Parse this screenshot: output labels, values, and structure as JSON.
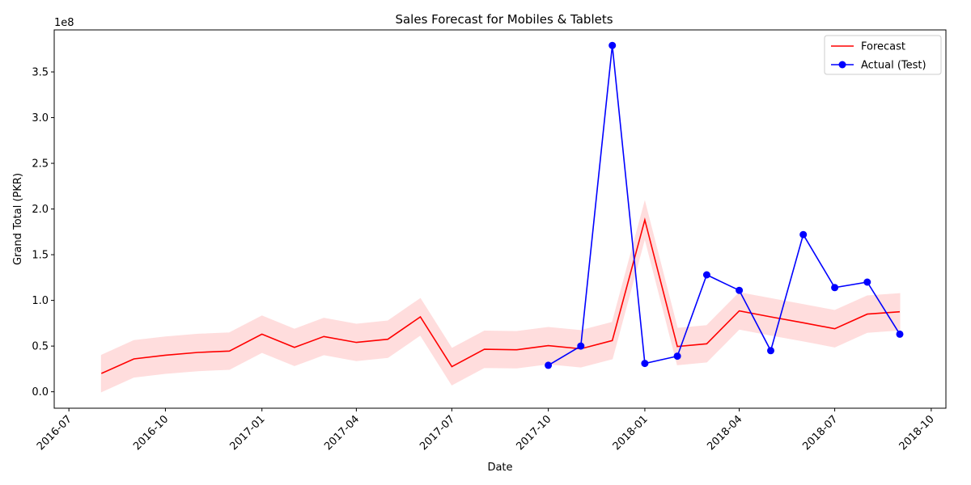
{
  "chart_data": {
    "type": "line",
    "title": "Sales Forecast for Mobiles & Tablets",
    "xlabel": "Date",
    "ylabel": "Grand Total (PKR)",
    "y_offset_label": "1e8",
    "xlim": [
      "2016-06-17",
      "2018-10-15"
    ],
    "ylim": [
      -0.18,
      3.96
    ],
    "x_ticks": [
      "2016-07",
      "2016-10",
      "2017-01",
      "2017-04",
      "2017-07",
      "2017-10",
      "2018-01",
      "2018-04",
      "2018-07",
      "2018-10"
    ],
    "y_ticks": [
      "0.0",
      "0.5",
      "1.0",
      "1.5",
      "2.0",
      "2.5",
      "3.0",
      "3.5"
    ],
    "grid": false,
    "legend_position": "top-right",
    "series": [
      {
        "name": "Forecast",
        "color": "#ff0000",
        "marker": "none",
        "band_color": "#ffdddd",
        "x": [
          "2016-08-01",
          "2016-09-01",
          "2016-10-01",
          "2016-11-01",
          "2016-12-01",
          "2017-01-01",
          "2017-02-01",
          "2017-03-01",
          "2017-04-01",
          "2017-05-01",
          "2017-06-01",
          "2017-07-01",
          "2017-08-01",
          "2017-09-01",
          "2017-10-01",
          "2017-11-01",
          "2017-12-01",
          "2018-01-01",
          "2018-02-01",
          "2018-03-01",
          "2018-04-01",
          "2018-05-01",
          "2018-06-01",
          "2018-07-01",
          "2018-08-01",
          "2018-09-01"
        ],
        "values": [
          0.2,
          0.36,
          0.4,
          0.43,
          0.445,
          0.63,
          0.485,
          0.605,
          0.54,
          0.575,
          0.82,
          0.275,
          0.465,
          0.46,
          0.505,
          0.47,
          0.56,
          1.88,
          0.495,
          0.525,
          0.885,
          0.82,
          0.755,
          0.69,
          0.85,
          0.875
        ],
        "lower": [
          0.0,
          0.16,
          0.2,
          0.23,
          0.245,
          0.43,
          0.285,
          0.405,
          0.34,
          0.375,
          0.62,
          0.075,
          0.265,
          0.26,
          0.305,
          0.27,
          0.36,
          1.68,
          0.295,
          0.325,
          0.685,
          0.62,
          0.555,
          0.49,
          0.65,
          0.675
        ],
        "upper": [
          0.4,
          0.56,
          0.6,
          0.63,
          0.645,
          0.83,
          0.685,
          0.805,
          0.74,
          0.775,
          1.02,
          0.475,
          0.665,
          0.66,
          0.705,
          0.67,
          0.76,
          2.08,
          0.695,
          0.725,
          1.085,
          1.02,
          0.955,
          0.89,
          1.05,
          1.075
        ]
      },
      {
        "name": "Actual (Test)",
        "color": "#0000ff",
        "marker": "circle",
        "x": [
          "2017-10-01",
          "2017-11-01",
          "2017-12-01",
          "2018-01-01",
          "2018-02-01",
          "2018-03-01",
          "2018-04-01",
          "2018-05-01",
          "2018-06-01",
          "2018-07-01",
          "2018-08-01",
          "2018-09-01"
        ],
        "values": [
          0.29,
          0.5,
          3.79,
          0.31,
          0.39,
          1.28,
          1.11,
          0.45,
          1.72,
          1.14,
          1.2,
          0.63
        ]
      }
    ]
  }
}
